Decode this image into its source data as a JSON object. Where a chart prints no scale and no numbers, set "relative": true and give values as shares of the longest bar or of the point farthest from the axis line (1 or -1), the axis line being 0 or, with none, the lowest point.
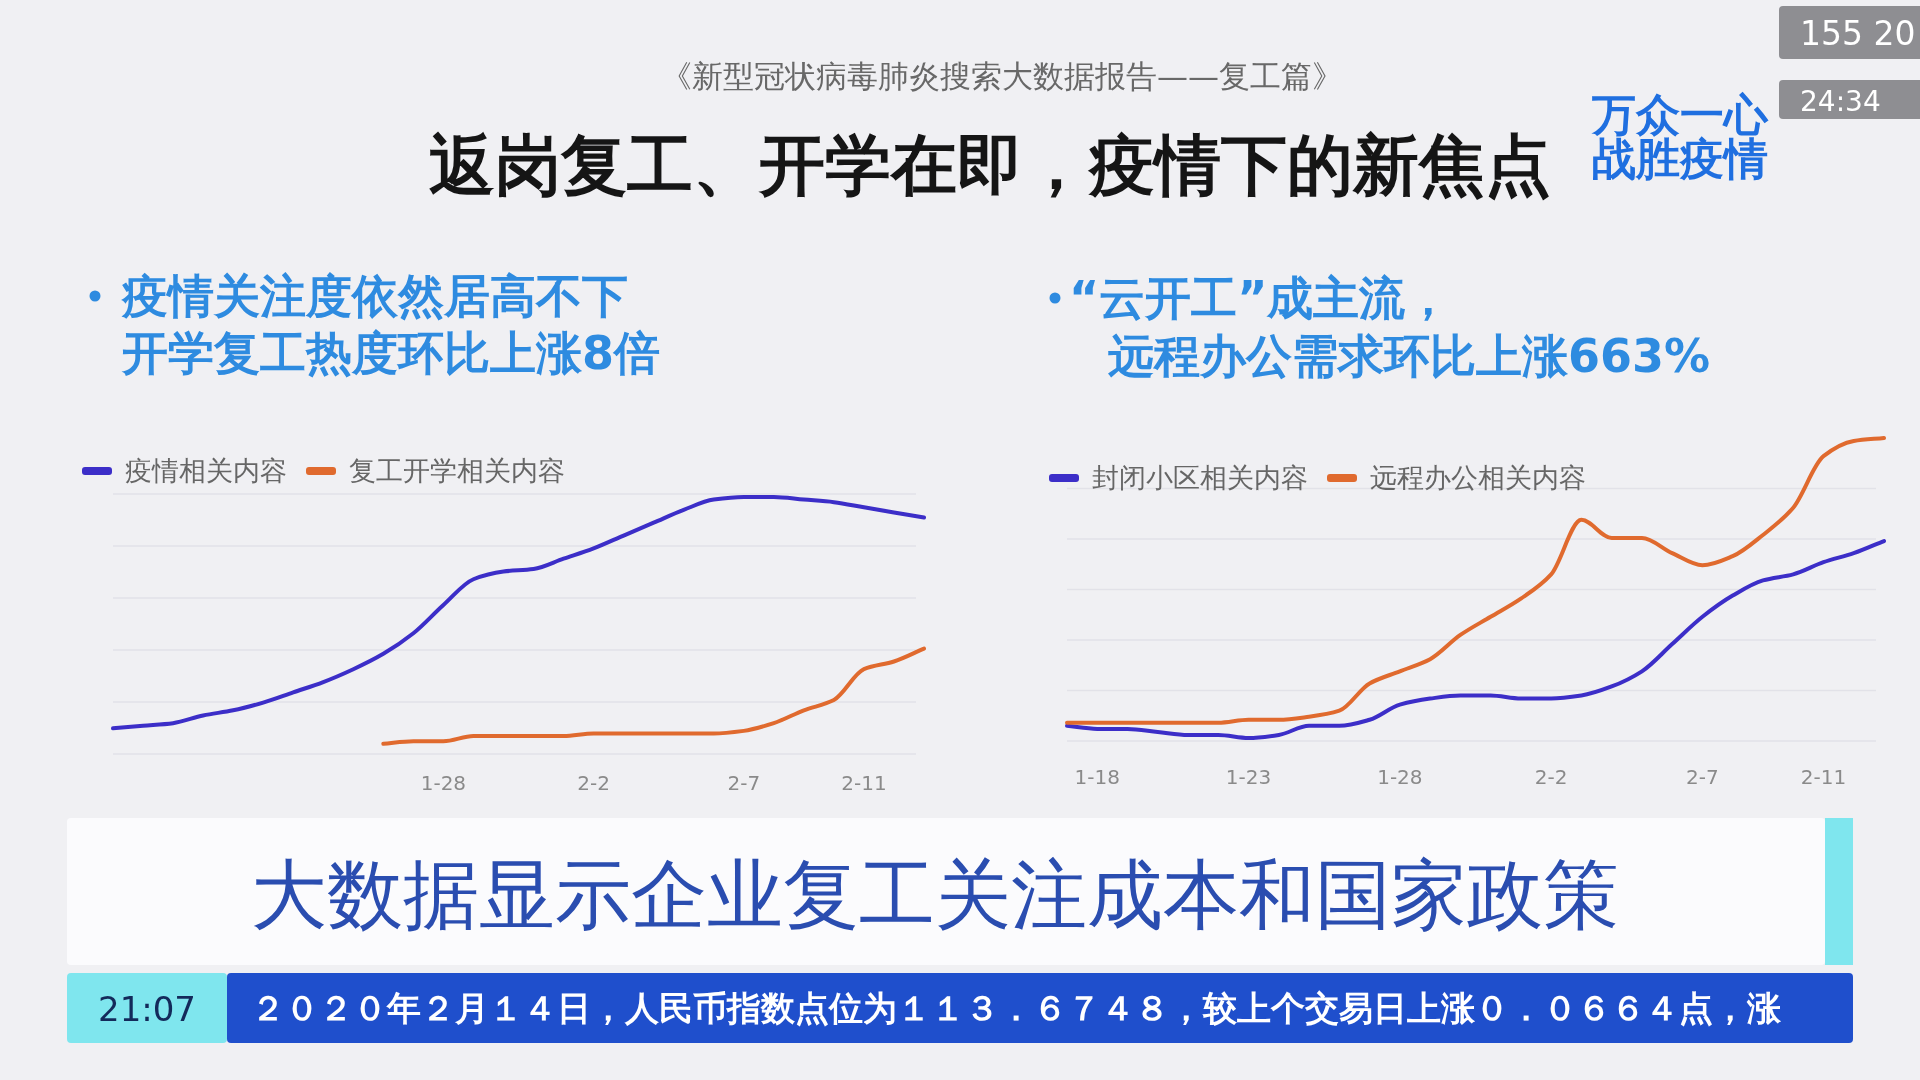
{
  "chart_data": [
    {
      "type": "other",
      "title": "返岗复工、开学在即，疫情下的新焦点",
      "subtitle": "《新型冠状病毒肺炎搜索大数据报告——复工篇》",
      "annotations": [
        "万众一心战胜疫情",
        "155 20",
        "24:34"
      ]
    },
    {
      "type": "line",
      "title": "疫情关注度依然居高不下开学复工热度环比上涨8倍",
      "categories": [
        null,
        null,
        null,
        null,
        null,
        null,
        null,
        null,
        null,
        null,
        null,
        "1-28",
        null,
        null,
        null,
        null,
        "2-2",
        null,
        null,
        null,
        null,
        "2-7",
        null,
        null,
        null,
        "2-11",
        null,
        null
      ],
      "relative": true,
      "grid": true,
      "legend": "top left",
      "series": [
        {
          "name": "疫情相关内容",
          "color": "#3c2ec8",
          "values": [
            0.1,
            0.11,
            0.12,
            0.15,
            0.17,
            0.2,
            0.24,
            0.28,
            0.33,
            0.39,
            0.47,
            0.58,
            0.68,
            0.71,
            0.72,
            0.76,
            0.8,
            0.85,
            0.9,
            0.95,
            0.99,
            1,
            1,
            0.99,
            0.98,
            0.96,
            0.94,
            0.92
          ]
        },
        {
          "name": "复工开学相关内容",
          "color": "#e06a2e",
          "values": [
            null,
            null,
            null,
            null,
            null,
            null,
            null,
            null,
            null,
            0.04,
            0.05,
            0.05,
            0.07,
            0.07,
            0.07,
            0.07,
            0.08,
            0.08,
            0.08,
            0.08,
            0.08,
            0.09,
            0.12,
            0.17,
            0.21,
            0.33,
            0.36,
            0.41
          ]
        }
      ]
    },
    {
      "type": "line",
      "title": "“云开工”成主流，远程办公需求环比上涨663%",
      "categories": [
        null,
        "1-18",
        null,
        null,
        null,
        null,
        "1-23",
        null,
        null,
        null,
        null,
        "1-28",
        null,
        null,
        null,
        null,
        "2-2",
        null,
        null,
        null,
        null,
        "2-7",
        null,
        null,
        null,
        "2-11",
        null,
        null
      ],
      "relative": true,
      "grid": true,
      "legend": "top left",
      "series": [
        {
          "name": "封闭小区相关内容",
          "color": "#3c2ec8",
          "values": [
            0.05,
            0.04,
            0.04,
            0.03,
            0.02,
            0.02,
            0.01,
            0.02,
            0.05,
            0.05,
            0.07,
            0.12,
            0.14,
            0.15,
            0.15,
            0.14,
            0.14,
            0.15,
            0.18,
            0.23,
            0.32,
            0.41,
            0.48,
            0.53,
            0.55,
            0.59,
            0.62,
            0.66
          ]
        },
        {
          "name": "远程办公相关内容",
          "color": "#e06a2e",
          "values": [
            0.06,
            0.06,
            0.06,
            0.06,
            0.06,
            0.06,
            0.07,
            0.07,
            0.08,
            0.1,
            0.19,
            0.23,
            0.27,
            0.35,
            0.41,
            0.47,
            0.55,
            0.73,
            0.67,
            0.67,
            0.62,
            0.58,
            0.61,
            0.68,
            0.77,
            0.94,
            0.99,
            1
          ]
        }
      ]
    },
    {
      "type": "other",
      "annotations": [
        "大数据显示企业复工关注成本和国家政策",
        "21:07",
        "２０２０年２月１４日，人民币指数点位为１１３．６７４８，较上个交易日上涨０．０６６４点，涨"
      ]
    }
  ]
}
